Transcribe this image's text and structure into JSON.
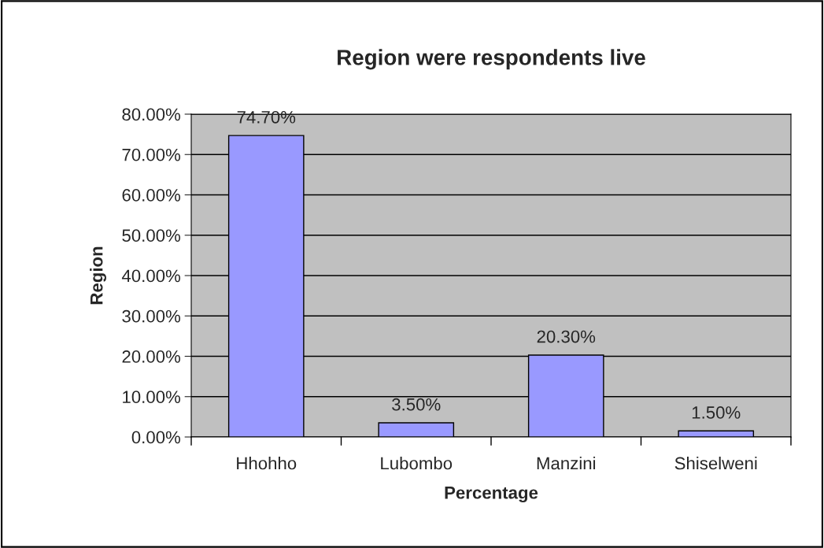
{
  "chart_data": {
    "type": "bar",
    "title": "Region were respondents live",
    "xlabel": "Percentage",
    "ylabel": "Region",
    "categories": [
      "Hhohho",
      "Lubombo",
      "Manzini",
      "Shiselweni"
    ],
    "values": [
      74.7,
      3.5,
      20.3,
      1.5
    ],
    "value_labels": [
      "74.70%",
      "3.50%",
      "20.30%",
      "1.50%"
    ],
    "color": "#9999ff",
    "ylim": [
      0,
      80
    ],
    "yticks": [
      {
        "value": 0,
        "label": "0.00%"
      },
      {
        "value": 10,
        "label": "10.00%"
      },
      {
        "value": 20,
        "label": "20.00%"
      },
      {
        "value": 30,
        "label": "30.00%"
      },
      {
        "value": 40,
        "label": "40.00%"
      },
      {
        "value": 50,
        "label": "50.00%"
      },
      {
        "value": 60,
        "label": "60.00%"
      },
      {
        "value": 70,
        "label": "70.00%"
      },
      {
        "value": 80,
        "label": "80.00%"
      }
    ],
    "grid": "y",
    "legend": false
  }
}
